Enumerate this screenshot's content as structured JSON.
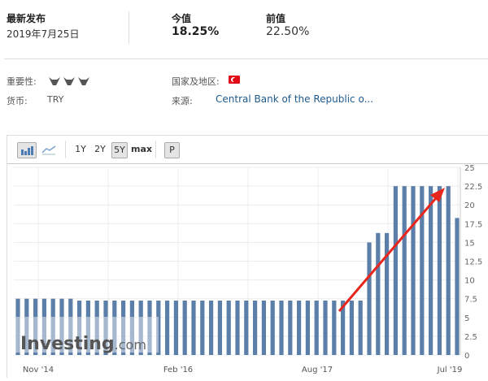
{
  "header": {
    "latest_release_label": "最新发布",
    "latest_release_date": "2019年7月25日",
    "actual_label": "今值",
    "actual_value": "18.25%",
    "previous_label": "前值",
    "previous_value": "22.50%"
  },
  "details": {
    "importance_label": "重要性:",
    "importance_level": 3,
    "importance_icon": "bull-icon",
    "currency_label": "货币:",
    "currency_value": "TRY",
    "country_label": "国家及地区:",
    "country_flag": "turkey-flag-icon",
    "source_label": "来源:",
    "source_value": "Central Bank of the Republic o..."
  },
  "toolbar": {
    "bar_chart_icon": "bar-chart-icon",
    "line_chart_icon": "line-chart-icon",
    "ranges": [
      "1Y",
      "2Y",
      "5Y",
      "max"
    ],
    "selected_range": "5Y",
    "p_label": "P"
  },
  "watermark": "Investing.com",
  "colors": {
    "bar": "#5b7fa8",
    "link": "#1f5a8c",
    "arrow": "#e8261c"
  },
  "chart_data": {
    "type": "bar",
    "values": [
      7.5,
      7.5,
      7.5,
      7.5,
      7.5,
      7.5,
      7.5,
      7.25,
      7.25,
      7.25,
      7.25,
      7.25,
      7.25,
      7.25,
      7.25,
      7.25,
      7.25,
      7.25,
      7.25,
      7.25,
      7.25,
      7.25,
      7.25,
      7.25,
      7.25,
      7.25,
      7.25,
      7.25,
      7.25,
      7.25,
      7.25,
      7.25,
      7.25,
      7.25,
      7.25,
      7.25,
      7.25,
      7.25,
      7.25,
      7.25,
      15,
      16.25,
      16.25,
      22.5,
      22.5,
      22.5,
      22.5,
      22.5,
      22.5,
      22.5,
      18.25
    ],
    "x_tick_labels": [
      "Nov '14",
      "Feb '16",
      "Aug '17",
      "Jul '19"
    ],
    "y_ticks": [
      "0",
      "2.5",
      "5",
      "7.5",
      "10",
      "12.5",
      "15",
      "17.5",
      "20",
      "22.5",
      "25"
    ],
    "ylim": [
      0,
      25
    ],
    "y_axis_side": "right",
    "grid": true,
    "annotation": "red arrow pointing up toward recent bars"
  }
}
